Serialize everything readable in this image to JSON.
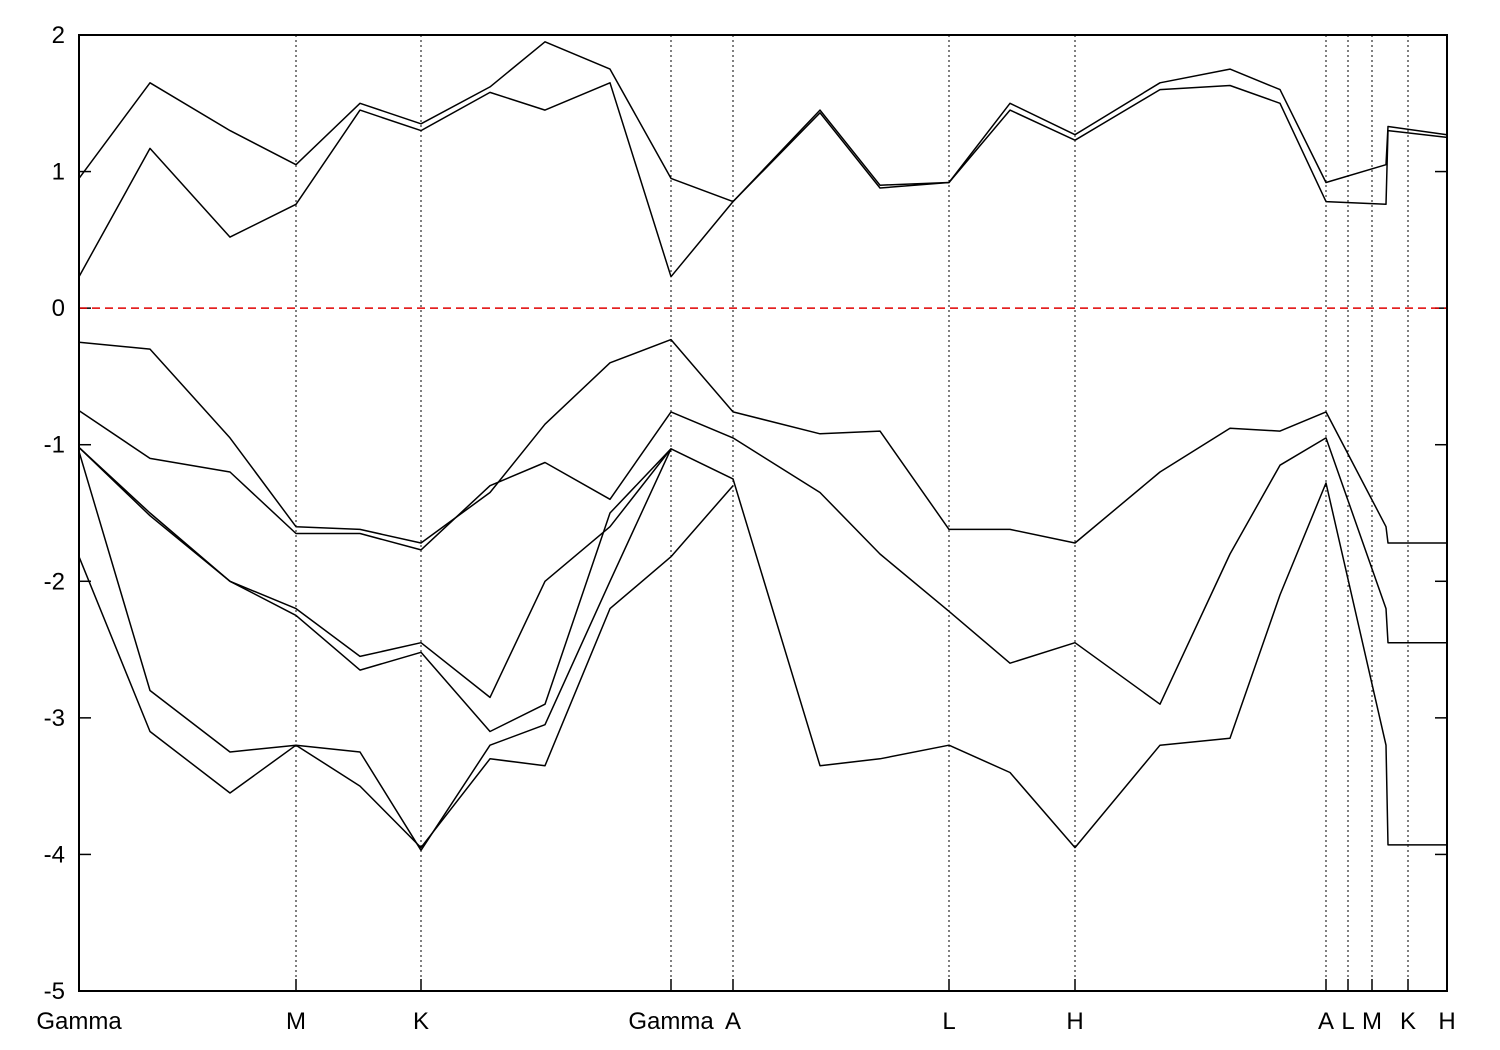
{
  "chart_data": {
    "type": "line",
    "x": [
      0,
      0.355,
      0.755,
      1.085,
      1.405,
      1.71,
      2.055,
      2.33,
      2.655,
      2.96,
      3.27,
      3.705,
      4.005,
      4.35,
      4.655,
      4.98,
      5.405,
      5.755,
      6.005,
      6.235,
      6.535,
      6.545,
      6.84
    ],
    "series": [
      {
        "color": "#000000",
        "values": [
          0.23,
          1.17,
          0.52,
          0.76,
          1.45,
          1.3,
          1.58,
          1.45,
          1.65,
          0.23,
          0.78,
          1.43,
          0.88,
          0.92,
          1.45,
          1.23,
          1.6,
          1.63,
          1.5,
          0.78,
          0.76,
          1.3,
          1.25
        ]
      },
      {
        "color": "#000000",
        "values": [
          0.95,
          1.65,
          1.3,
          1.05,
          1.5,
          1.35,
          1.62,
          1.95,
          1.75,
          0.95,
          0.78,
          1.45,
          0.9,
          0.92,
          1.5,
          1.27,
          1.65,
          1.75,
          1.6,
          0.92,
          1.05,
          1.33,
          1.27
        ]
      },
      {
        "color": "#000000",
        "values": [
          -0.25,
          -0.3,
          -0.95,
          -1.6,
          -1.62,
          -1.72,
          -1.35,
          -0.85,
          -0.4,
          -0.23,
          -0.76,
          -0.92,
          -0.9,
          -1.62,
          -1.62,
          -1.72,
          -1.2,
          -0.88,
          -0.9,
          -0.76,
          -1.6,
          -1.72,
          -1.72
        ]
      },
      {
        "color": "#000000",
        "values": [
          -0.75,
          -1.1,
          -1.2,
          -1.65,
          -1.65,
          -1.77,
          -1.3,
          -1.13,
          -1.4,
          -0.76,
          -0.95,
          -1.35,
          -1.8,
          -2.22,
          -2.6,
          -2.45,
          -2.9,
          -1.8,
          -1.15,
          -0.95,
          -2.2,
          -2.45,
          -2.45
        ]
      },
      {
        "color": "#000000",
        "values": [
          -1.02,
          -1.5,
          -2.0,
          -2.2,
          -2.55,
          -2.45,
          -2.85,
          -2.0,
          -1.6,
          -1.03,
          -1.25,
          -3.35,
          -3.3,
          -3.2,
          -3.4,
          -3.95,
          -3.2,
          -3.15,
          -2.1,
          -1.28,
          -3.2,
          -3.93,
          -3.93
        ]
      },
      {
        "color": "#000000",
        "values": [
          -1.05,
          -2.8,
          -3.25,
          -3.2,
          -3.5,
          -3.95,
          -3.3,
          -3.35,
          -2.2,
          -1.82,
          -1.3,
          null,
          null,
          null,
          null,
          null,
          null,
          null,
          null,
          null,
          null,
          null,
          null
        ]
      },
      {
        "color": "#000000",
        "values": [
          -1.82,
          -3.1,
          -3.55,
          -3.2,
          -3.25,
          -3.97,
          -3.2,
          -3.05,
          -2.0,
          -1.03,
          null,
          null,
          null,
          null,
          null,
          null,
          null,
          null,
          null,
          null,
          null,
          null,
          null
        ]
      },
      {
        "color": "#000000",
        "values": [
          -1.02,
          -1.52,
          -2.0,
          -2.25,
          -2.65,
          -2.52,
          -3.1,
          -2.9,
          -1.5,
          -1.03,
          null,
          null,
          null,
          null,
          null,
          null,
          null,
          null,
          null,
          null,
          null,
          null,
          null
        ]
      }
    ],
    "xlim": [
      0,
      6.84
    ],
    "xticks": [
      {
        "value": 0,
        "label": "Gamma"
      },
      {
        "value": 1.085,
        "label": "M"
      },
      {
        "value": 1.71,
        "label": "K"
      },
      {
        "value": 2.96,
        "label": "Gamma"
      },
      {
        "value": 3.27,
        "label": "A"
      },
      {
        "value": 4.35,
        "label": "L"
      },
      {
        "value": 4.98,
        "label": "H"
      },
      {
        "value": 6.235,
        "label": "A"
      },
      {
        "value": 6.345,
        "label": "L"
      },
      {
        "value": 6.465,
        "label": "M"
      },
      {
        "value": 6.645,
        "label": "K"
      },
      {
        "value": 6.84,
        "label": "H"
      }
    ],
    "ylim": [
      -5,
      2
    ],
    "yticks": [
      -5,
      -4,
      -3,
      -2,
      -1,
      0,
      1,
      2
    ],
    "fermi_level": 0,
    "fermi_color": "#e00000"
  }
}
